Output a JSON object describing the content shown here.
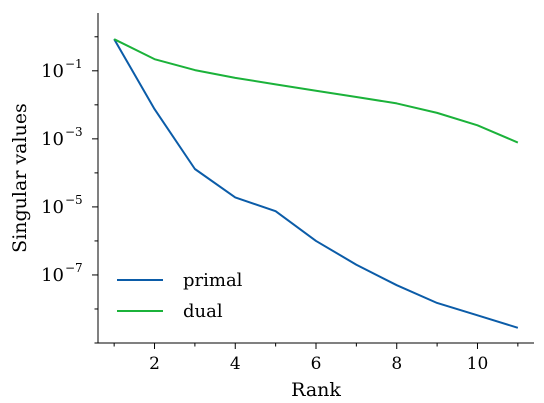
{
  "chart_data": {
    "type": "line",
    "title": "",
    "xlabel": "Rank",
    "ylabel": "Singular values",
    "x": [
      1,
      2,
      3,
      4,
      5,
      6,
      7,
      8,
      9,
      10,
      11
    ],
    "xticks": [
      2,
      4,
      6,
      8,
      10
    ],
    "xtick_labels": [
      "2",
      "4",
      "6",
      "8",
      "10"
    ],
    "xlim": [
      0.6,
      11.4
    ],
    "yscale": "log",
    "ylim": [
      1e-09,
      5
    ],
    "yticks": [
      1e-07,
      1e-05,
      0.001,
      0.1
    ],
    "ytick_labels": [
      {
        "base": "10",
        "exp": "−7"
      },
      {
        "base": "10",
        "exp": "−5"
      },
      {
        "base": "10",
        "exp": "−3"
      },
      {
        "base": "10",
        "exp": "−1"
      }
    ],
    "series": [
      {
        "name": "primal",
        "color": "#0b5ca8",
        "values": [
          0.85,
          0.0075,
          0.00013,
          1.9e-05,
          7.5e-06,
          1e-06,
          2e-07,
          5e-08,
          1.5e-08,
          6.5e-09,
          2.8e-09
        ]
      },
      {
        "name": "dual",
        "color": "#1bb23a",
        "values": [
          0.85,
          0.22,
          0.105,
          0.062,
          0.04,
          0.026,
          0.017,
          0.011,
          0.0058,
          0.0025,
          0.00078
        ]
      }
    ],
    "legend": "bottom-left",
    "grid": false
  }
}
